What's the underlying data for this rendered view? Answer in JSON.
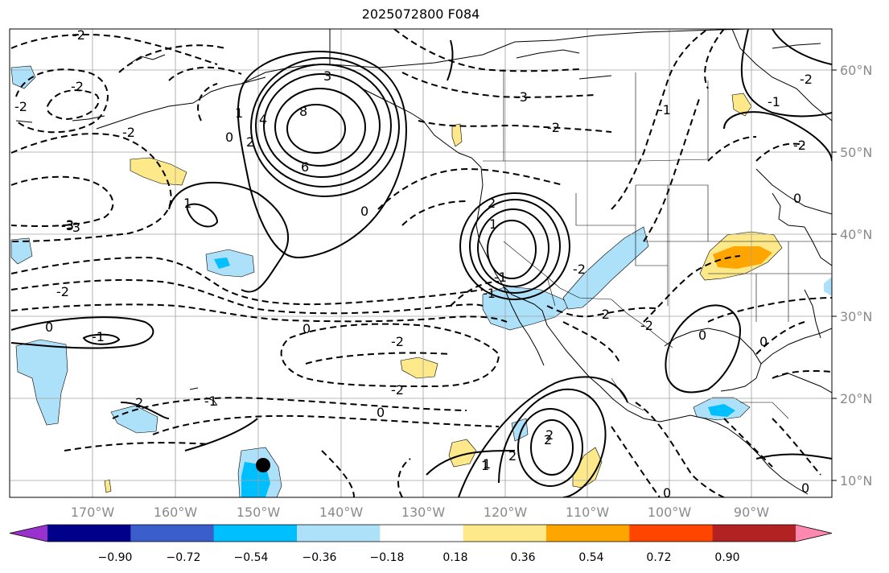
{
  "title": "2025072800 F084",
  "lat_labels": [
    "60°N",
    "50°N",
    "40°N",
    "30°N",
    "20°N",
    "10°N"
  ],
  "lon_labels": [
    "170°W",
    "160°W",
    "150°W",
    "140°W",
    "130°W",
    "120°W",
    "110°W",
    "100°W",
    "90°W"
  ],
  "colorbar": {
    "colors": [
      "#9932cc",
      "#00008b",
      "#3a5ecc",
      "#00bfff",
      "#ade1fa",
      "#ffffff",
      "#fee98a",
      "#ffa500",
      "#ff4500",
      "#b22222",
      "#ff88b0"
    ],
    "tick_labels": [
      "−0.90",
      "−0.72",
      "−0.54",
      "−0.36",
      "−0.18",
      "0.18",
      "0.36",
      "0.54",
      "0.72",
      "0.90"
    ]
  },
  "colors": {
    "pos_contour": "#000000",
    "neg_contour": "#000000",
    "grid": "#a0a0a0",
    "coast": "#000000"
  },
  "contour_labels": [
    "-2",
    "-2",
    "-2",
    "-3",
    "-3",
    "3",
    "8",
    "6",
    "4",
    "2",
    "1",
    "0",
    "1",
    "-3",
    "0",
    "-2",
    "-2",
    "0",
    "-1",
    "2",
    "1",
    "0",
    "-1",
    "-2",
    "-2",
    "0",
    "-1",
    "-2",
    "0",
    "-2",
    "-3",
    "-2",
    "2",
    "-1",
    "0",
    "-2",
    "2",
    "1",
    "-2",
    "-2",
    "-1",
    "-1",
    "0",
    "0",
    "0",
    "2",
    "1",
    "2"
  ],
  "marker": {
    "label": "station-dot"
  }
}
